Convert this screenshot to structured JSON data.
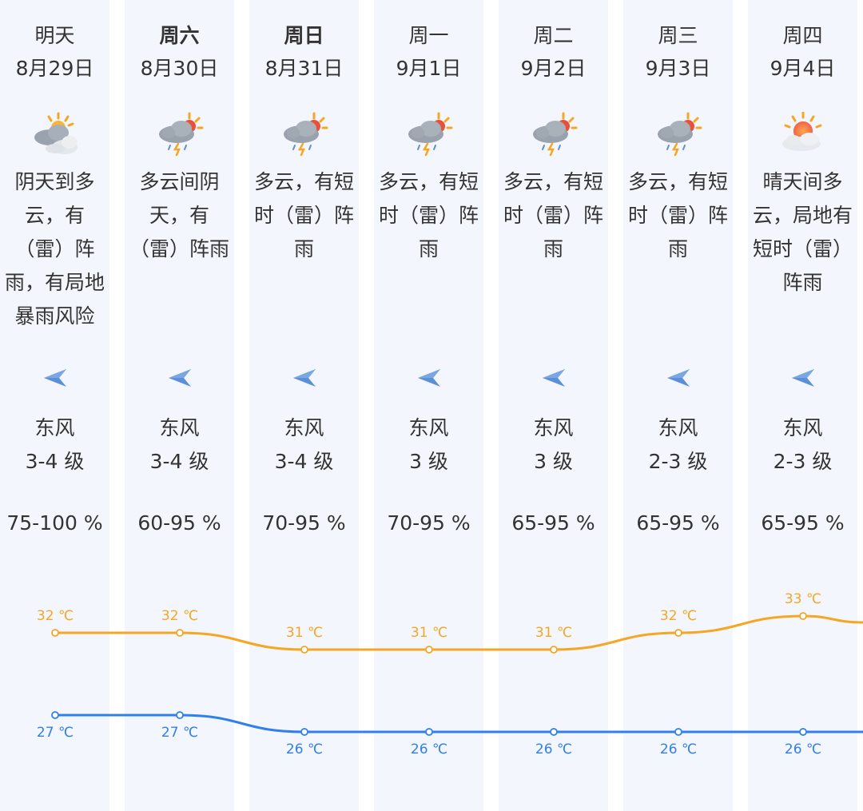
{
  "days": [
    {
      "day": "明天",
      "date": "8月29日",
      "desc": "阴天到多云，有（雷）阵雨，有局地暴雨风险",
      "icon": "cloudy-sun-icon",
      "wind_dir": "东风",
      "wind_level": "3-4 级",
      "humidity": "75-100 %",
      "bold": false
    },
    {
      "day": "周六",
      "date": "8月30日",
      "desc": "多云间阴天，有（雷）阵雨",
      "icon": "thunder-shower-icon",
      "wind_dir": "东风",
      "wind_level": "3-4 级",
      "humidity": "60-95 %",
      "bold": true
    },
    {
      "day": "周日",
      "date": "8月31日",
      "desc": "多云，有短时（雷）阵雨",
      "icon": "thunder-shower-icon",
      "wind_dir": "东风",
      "wind_level": "3-4 级",
      "humidity": "70-95 %",
      "bold": true
    },
    {
      "day": "周一",
      "date": "9月1日",
      "desc": "多云，有短时（雷）阵雨",
      "icon": "thunder-shower-icon",
      "wind_dir": "东风",
      "wind_level": "3 级",
      "humidity": "70-95 %",
      "bold": false
    },
    {
      "day": "周二",
      "date": "9月2日",
      "desc": "多云，有短时（雷）阵雨",
      "icon": "thunder-shower-icon",
      "wind_dir": "东风",
      "wind_level": "3 级",
      "humidity": "65-95 %",
      "bold": false
    },
    {
      "day": "周三",
      "date": "9月3日",
      "desc": "多云，有短时（雷）阵雨",
      "icon": "thunder-shower-icon",
      "wind_dir": "东风",
      "wind_level": "2-3 级",
      "humidity": "65-95 %",
      "bold": false
    },
    {
      "day": "周四",
      "date": "9月4日",
      "desc": "晴天间多云，局地有短时（雷）阵雨",
      "icon": "sunny-cloud-icon",
      "wind_dir": "东风",
      "wind_level": "2-3 级",
      "humidity": "65-95 %",
      "bold": false
    }
  ],
  "wind_arrow_icon": "wind-arrow-left-icon",
  "chart_data": {
    "type": "line",
    "categories": [
      "8月29日",
      "8月30日",
      "8月31日",
      "9月1日",
      "9月2日",
      "9月3日",
      "9月4日"
    ],
    "series": [
      {
        "values": [
          32,
          32,
          31,
          31,
          31,
          32,
          33
        ],
        "color": "#f5a623",
        "labels": [
          "32 ℃",
          "32 ℃",
          "31 ℃",
          "31 ℃",
          "31 ℃",
          "32 ℃",
          "33 ℃"
        ]
      },
      {
        "values": [
          27,
          27,
          26,
          26,
          26,
          26,
          26
        ],
        "color": "#2f80ed",
        "labels": [
          "27 ℃",
          "27 ℃",
          "26 ℃",
          "26 ℃",
          "26 ℃",
          "26 ℃",
          "26 ℃"
        ]
      }
    ]
  },
  "colors": {
    "column_bg": "#f4f6fd",
    "high": "#f5a623",
    "low": "#2f80ed",
    "arrow": "#5b8fd6"
  }
}
